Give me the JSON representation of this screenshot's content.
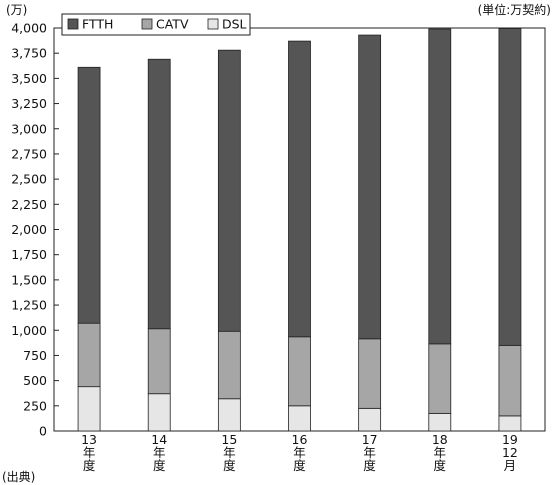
{
  "chart_data": {
    "type": "bar",
    "stacked": true,
    "y_unit": "(万)",
    "unit_note": "(単位:万契約)",
    "source_note": "(出典)",
    "categories": [
      "13年度",
      "14年度",
      "15年度",
      "16年度",
      "17年度",
      "18年度",
      "19年12月"
    ],
    "category_labels": [
      [
        "13",
        "年",
        "度"
      ],
      [
        "14",
        "年",
        "度"
      ],
      [
        "15",
        "年",
        "度"
      ],
      [
        "16",
        "年",
        "度"
      ],
      [
        "17",
        "年",
        "度"
      ],
      [
        "18",
        "年",
        "度"
      ],
      [
        "19",
        "12",
        "月"
      ]
    ],
    "series": [
      {
        "name": "DSL",
        "color": "#e6e6e6",
        "values": [
          440,
          370,
          320,
          250,
          225,
          175,
          150
        ]
      },
      {
        "name": "CATV",
        "color": "#a6a6a6",
        "values": [
          630,
          645,
          670,
          685,
          690,
          690,
          700
        ]
      },
      {
        "name": "FTTH",
        "color": "#555555",
        "values": [
          2540,
          2675,
          2790,
          2935,
          3015,
          3125,
          3145
        ]
      }
    ],
    "legend_order": [
      "FTTH",
      "CATV",
      "DSL"
    ],
    "legend_position": "top-left",
    "ylim": [
      0,
      4000
    ],
    "yticks": [
      0,
      250,
      500,
      750,
      1000,
      1250,
      1500,
      1750,
      2000,
      2250,
      2500,
      2750,
      3000,
      3250,
      3500,
      3750,
      4000
    ],
    "ytick_labels": [
      "0",
      "250",
      "500",
      "750",
      "1,000",
      "1,250",
      "1,500",
      "1,750",
      "2,000",
      "2,250",
      "2,500",
      "2,750",
      "3,000",
      "3,250",
      "3,500",
      "3,750",
      "4,000"
    ],
    "grid": false
  }
}
